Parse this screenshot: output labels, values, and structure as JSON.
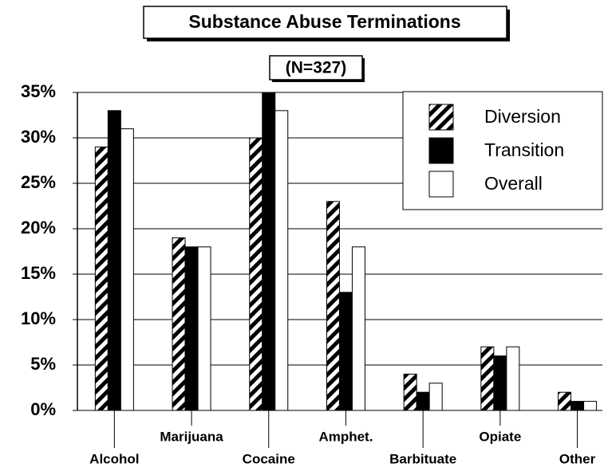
{
  "chart_data": {
    "type": "bar",
    "title": "Substance Abuse Terminations",
    "subtitle": "(N=327)",
    "categories": [
      "Alcohol",
      "Marijuana",
      "Cocaine",
      "Amphet.",
      "Barbituate",
      "Opiate",
      "Other"
    ],
    "series": [
      {
        "name": "Diversion",
        "color": "#000000",
        "fill": "hatched",
        "values": [
          29,
          19,
          30,
          23,
          4,
          7,
          2
        ]
      },
      {
        "name": "Transition",
        "color": "#000000",
        "fill": "solid",
        "values": [
          33,
          18,
          35,
          13,
          2,
          6,
          1
        ]
      },
      {
        "name": "Overall",
        "color": "#ffffff",
        "fill": "solid",
        "values": [
          31,
          18,
          33,
          18,
          3,
          7,
          1
        ]
      }
    ],
    "ylim": [
      0,
      35
    ],
    "yticks": [
      {
        "value": 0,
        "label": "0%"
      },
      {
        "value": 5,
        "label": "5%"
      },
      {
        "value": 10,
        "label": "10%"
      },
      {
        "value": 15,
        "label": "15%"
      },
      {
        "value": 20,
        "label": "20%"
      },
      {
        "value": 25,
        "label": "25%"
      },
      {
        "value": 30,
        "label": "30%"
      },
      {
        "value": 35,
        "label": "35%"
      }
    ],
    "grid": true,
    "legend": "top-right"
  }
}
